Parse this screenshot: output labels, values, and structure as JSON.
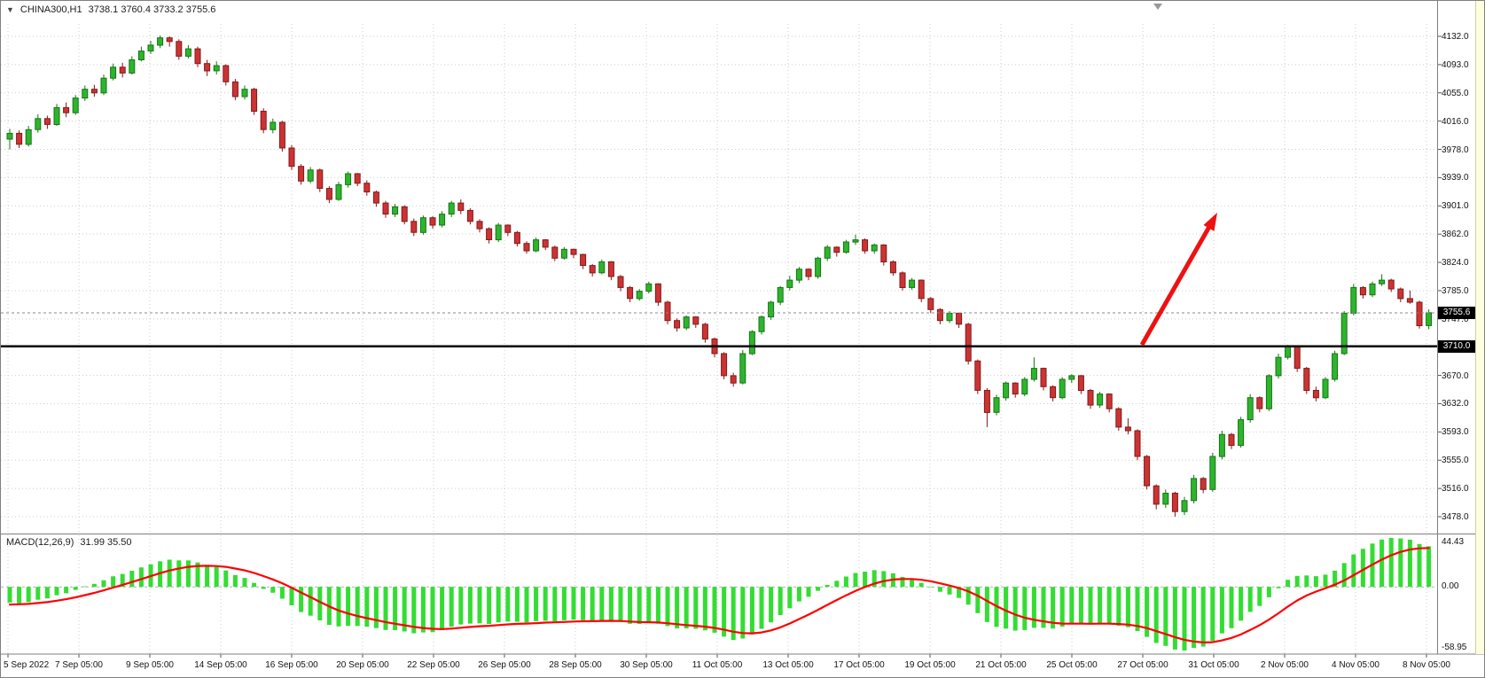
{
  "symbol_header": {
    "symbol": "CHINA300,H1",
    "ohlc": "3738.1 3760.4 3733.2 3755.6"
  },
  "price_axis": {
    "labels": [
      "4132.0",
      "4093.0",
      "4055.0",
      "4016.0",
      "3978.0",
      "3939.0",
      "3901.0",
      "3862.0",
      "3824.0",
      "3785.0",
      "3747.0",
      "3708.0",
      "3670.0",
      "3632.0",
      "3593.0",
      "3555.0",
      "3516.0",
      "3478.0"
    ],
    "current_price_badge": "3755.6",
    "hline_badge": "3710.0"
  },
  "macd": {
    "label": "MACD(12,26,9)",
    "values": "31.99 35.50",
    "axis_labels": [
      "44.43",
      "0.00",
      "-58.95"
    ]
  },
  "colors": {
    "up_candle": "#2db52d",
    "up_border": "#157515",
    "down_candle": "#cc3333",
    "down_border": "#801a1a",
    "wick_up": "#157515",
    "wick_down": "#801a1a",
    "macd_histogram": "#33dd33",
    "macd_signal": "#ff0000",
    "hline": "#000000",
    "bid_line": "#888888",
    "arrow": "#ee1111",
    "badge_bg": "#000000",
    "badge_text": "#ffffff"
  },
  "chart_data": {
    "type": "candlestick",
    "title": "CHINA300,H1",
    "symbol": "CHINA300",
    "timeframe": "H1",
    "last": {
      "open": 3738.1,
      "high": 3760.4,
      "low": 3733.2,
      "close": 3755.6
    },
    "current_price": 3755.6,
    "hline": 3710.0,
    "ylim": [
      3478,
      4132
    ],
    "grid": true,
    "x_labels": [
      "5 Sep 2022",
      "7 Sep 05:00",
      "9 Sep 05:00",
      "14 Sep 05:00",
      "16 Sep 05:00",
      "20 Sep 05:00",
      "22 Sep 05:00",
      "26 Sep 05:00",
      "28 Sep 05:00",
      "30 Sep 05:00",
      "11 Oct 05:00",
      "13 Oct 05:00",
      "17 Oct 05:00",
      "19 Oct 05:00",
      "21 Oct 05:00",
      "25 Oct 05:00",
      "27 Oct 05:00",
      "31 Oct 05:00",
      "2 Nov 05:00",
      "4 Nov 05:00",
      "8 Nov 05:00"
    ],
    "candles": [
      [
        3992,
        4006,
        3978,
        4000
      ],
      [
        4000,
        4004,
        3980,
        3985
      ],
      [
        3985,
        4010,
        3982,
        4005
      ],
      [
        4005,
        4026,
        4001,
        4020
      ],
      [
        4020,
        4024,
        4006,
        4012
      ],
      [
        4012,
        4040,
        4010,
        4035
      ],
      [
        4035,
        4042,
        4022,
        4028
      ],
      [
        4028,
        4052,
        4025,
        4048
      ],
      [
        4048,
        4065,
        4044,
        4060
      ],
      [
        4060,
        4066,
        4050,
        4055
      ],
      [
        4055,
        4080,
        4052,
        4075
      ],
      [
        4075,
        4095,
        4072,
        4090
      ],
      [
        4090,
        4096,
        4076,
        4082
      ],
      [
        4082,
        4105,
        4080,
        4100
      ],
      [
        4100,
        4118,
        4098,
        4112
      ],
      [
        4112,
        4126,
        4108,
        4120
      ],
      [
        4120,
        4133,
        4116,
        4130
      ],
      [
        4130,
        4132,
        4118,
        4125
      ],
      [
        4125,
        4128,
        4100,
        4105
      ],
      [
        4105,
        4120,
        4102,
        4115
      ],
      [
        4115,
        4118,
        4090,
        4095
      ],
      [
        4095,
        4100,
        4078,
        4085
      ],
      [
        4085,
        4098,
        4080,
        4092
      ],
      [
        4092,
        4094,
        4065,
        4070
      ],
      [
        4070,
        4074,
        4045,
        4050
      ],
      [
        4050,
        4065,
        4046,
        4060
      ],
      [
        4060,
        4062,
        4025,
        4030
      ],
      [
        4030,
        4034,
        4000,
        4005
      ],
      [
        4005,
        4020,
        4000,
        4015
      ],
      [
        4015,
        4017,
        3975,
        3980
      ],
      [
        3980,
        3984,
        3950,
        3955
      ],
      [
        3955,
        3958,
        3930,
        3935
      ],
      [
        3935,
        3954,
        3932,
        3950
      ],
      [
        3950,
        3952,
        3920,
        3925
      ],
      [
        3925,
        3928,
        3905,
        3910
      ],
      [
        3910,
        3934,
        3908,
        3930
      ],
      [
        3930,
        3948,
        3926,
        3945
      ],
      [
        3945,
        3946,
        3928,
        3932
      ],
      [
        3932,
        3936,
        3915,
        3920
      ],
      [
        3920,
        3922,
        3900,
        3905
      ],
      [
        3905,
        3908,
        3885,
        3890
      ],
      [
        3890,
        3904,
        3886,
        3900
      ],
      [
        3900,
        3902,
        3876,
        3880
      ],
      [
        3880,
        3884,
        3860,
        3865
      ],
      [
        3865,
        3888,
        3862,
        3885
      ],
      [
        3885,
        3887,
        3870,
        3875
      ],
      [
        3875,
        3894,
        3872,
        3890
      ],
      [
        3890,
        3908,
        3886,
        3905
      ],
      [
        3905,
        3910,
        3890,
        3895
      ],
      [
        3895,
        3898,
        3876,
        3880
      ],
      [
        3880,
        3883,
        3865,
        3870
      ],
      [
        3870,
        3872,
        3850,
        3855
      ],
      [
        3855,
        3878,
        3852,
        3875
      ],
      [
        3875,
        3876,
        3860,
        3865
      ],
      [
        3865,
        3867,
        3846,
        3850
      ],
      [
        3850,
        3853,
        3836,
        3840
      ],
      [
        3840,
        3858,
        3838,
        3855
      ],
      [
        3855,
        3856,
        3841,
        3845
      ],
      [
        3845,
        3847,
        3826,
        3830
      ],
      [
        3830,
        3845,
        3828,
        3842
      ],
      [
        3842,
        3843,
        3830,
        3835
      ],
      [
        3835,
        3836,
        3815,
        3820
      ],
      [
        3820,
        3822,
        3805,
        3810
      ],
      [
        3810,
        3828,
        3808,
        3825
      ],
      [
        3825,
        3826,
        3800,
        3805
      ],
      [
        3805,
        3807,
        3785,
        3790
      ],
      [
        3790,
        3792,
        3770,
        3775
      ],
      [
        3775,
        3788,
        3772,
        3785
      ],
      [
        3785,
        3798,
        3782,
        3795
      ],
      [
        3795,
        3796,
        3765,
        3770
      ],
      [
        3770,
        3772,
        3740,
        3745
      ],
      [
        3745,
        3748,
        3730,
        3735
      ],
      [
        3735,
        3752,
        3732,
        3750
      ],
      [
        3750,
        3751,
        3735,
        3740
      ],
      [
        3740,
        3742,
        3715,
        3720
      ],
      [
        3720,
        3722,
        3695,
        3700
      ],
      [
        3700,
        3702,
        3665,
        3670
      ],
      [
        3670,
        3674,
        3655,
        3660
      ],
      [
        3660,
        3705,
        3658,
        3700
      ],
      [
        3700,
        3732,
        3698,
        3730
      ],
      [
        3730,
        3752,
        3726,
        3750
      ],
      [
        3750,
        3772,
        3746,
        3770
      ],
      [
        3770,
        3792,
        3766,
        3790
      ],
      [
        3790,
        3806,
        3786,
        3800
      ],
      [
        3800,
        3818,
        3796,
        3815
      ],
      [
        3815,
        3816,
        3800,
        3805
      ],
      [
        3805,
        3832,
        3802,
        3830
      ],
      [
        3830,
        3848,
        3826,
        3845
      ],
      [
        3845,
        3846,
        3832,
        3838
      ],
      [
        3838,
        3855,
        3836,
        3852
      ],
      [
        3852,
        3862,
        3848,
        3855
      ],
      [
        3855,
        3857,
        3836,
        3840
      ],
      [
        3840,
        3850,
        3836,
        3848
      ],
      [
        3848,
        3849,
        3820,
        3825
      ],
      [
        3825,
        3827,
        3806,
        3810
      ],
      [
        3810,
        3812,
        3786,
        3790
      ],
      [
        3790,
        3803,
        3787,
        3800
      ],
      [
        3800,
        3801,
        3770,
        3775
      ],
      [
        3775,
        3777,
        3755,
        3760
      ],
      [
        3760,
        3762,
        3740,
        3745
      ],
      [
        3745,
        3758,
        3742,
        3755
      ],
      [
        3755,
        3756,
        3735,
        3740
      ],
      [
        3740,
        3742,
        3685,
        3690
      ],
      [
        3690,
        3692,
        3645,
        3650
      ],
      [
        3650,
        3653,
        3600,
        3620
      ],
      [
        3620,
        3644,
        3616,
        3640
      ],
      [
        3640,
        3662,
        3636,
        3660
      ],
      [
        3660,
        3661,
        3640,
        3645
      ],
      [
        3645,
        3668,
        3642,
        3665
      ],
      [
        3665,
        3695,
        3662,
        3680
      ],
      [
        3680,
        3681,
        3650,
        3655
      ],
      [
        3655,
        3657,
        3635,
        3640
      ],
      [
        3640,
        3668,
        3638,
        3665
      ],
      [
        3665,
        3672,
        3660,
        3670
      ],
      [
        3670,
        3671,
        3645,
        3650
      ],
      [
        3650,
        3652,
        3625,
        3630
      ],
      [
        3630,
        3648,
        3626,
        3645
      ],
      [
        3645,
        3646,
        3620,
        3625
      ],
      [
        3625,
        3627,
        3595,
        3600
      ],
      [
        3600,
        3612,
        3590,
        3595
      ],
      [
        3595,
        3597,
        3555,
        3560
      ],
      [
        3560,
        3562,
        3515,
        3520
      ],
      [
        3520,
        3522,
        3488,
        3495
      ],
      [
        3495,
        3515,
        3490,
        3510
      ],
      [
        3510,
        3512,
        3478,
        3485
      ],
      [
        3485,
        3505,
        3480,
        3500
      ],
      [
        3500,
        3535,
        3496,
        3530
      ],
      [
        3530,
        3532,
        3510,
        3515
      ],
      [
        3515,
        3565,
        3512,
        3560
      ],
      [
        3560,
        3595,
        3556,
        3590
      ],
      [
        3590,
        3592,
        3570,
        3575
      ],
      [
        3575,
        3614,
        3572,
        3610
      ],
      [
        3610,
        3645,
        3606,
        3640
      ],
      [
        3640,
        3642,
        3620,
        3625
      ],
      [
        3625,
        3672,
        3622,
        3670
      ],
      [
        3670,
        3700,
        3666,
        3695
      ],
      [
        3695,
        3712,
        3692,
        3710
      ],
      [
        3710,
        3711,
        3675,
        3680
      ],
      [
        3680,
        3682,
        3645,
        3650
      ],
      [
        3650,
        3655,
        3635,
        3640
      ],
      [
        3640,
        3668,
        3638,
        3665
      ],
      [
        3665,
        3704,
        3662,
        3700
      ],
      [
        3700,
        3758,
        3698,
        3755
      ],
      [
        3755,
        3795,
        3752,
        3790
      ],
      [
        3790,
        3792,
        3775,
        3780
      ],
      [
        3780,
        3798,
        3777,
        3795
      ],
      [
        3795,
        3808,
        3792,
        3800
      ],
      [
        3800,
        3802,
        3784,
        3788
      ],
      [
        3788,
        3790,
        3770,
        3775
      ],
      [
        3775,
        3786,
        3768,
        3770
      ],
      [
        3770,
        3772,
        3734,
        3738
      ],
      [
        3738.1,
        3760.4,
        3733.2,
        3755.6
      ]
    ],
    "macd_indicator": {
      "fast": 12,
      "slow": 26,
      "signal": 9,
      "main_value": 31.99,
      "signal_value": 35.5,
      "ylim": [
        -58.95,
        44.43
      ]
    },
    "annotation_arrow": {
      "from": {
        "x": 1287,
        "price": 3712
      },
      "to": {
        "x": 1372,
        "price": 3892
      }
    }
  }
}
